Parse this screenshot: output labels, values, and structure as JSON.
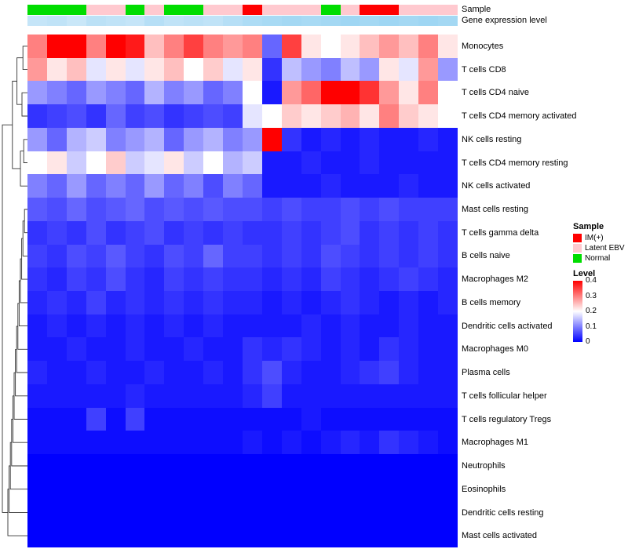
{
  "annotations": {
    "sample_label": "Sample",
    "expression_label": "Gene expression level",
    "sample_colors": {
      "IM(+)": "#FF0000",
      "Latent EBV": "#FFC9CF",
      "Normal": "#00DD00"
    },
    "sample_by_column": [
      "Normal",
      "Normal",
      "Normal",
      "Latent EBV",
      "Latent EBV",
      "Normal",
      "Latent EBV",
      "Normal",
      "Normal",
      "Latent EBV",
      "Latent EBV",
      "IM(+)",
      "Latent EBV",
      "Latent EBV",
      "Latent EBV",
      "Normal",
      "Latent EBV",
      "IM(+)",
      "IM(+)",
      "Latent EBV",
      "Latent EBV",
      "Latent EBV"
    ],
    "expression_by_column": [
      0.25,
      0.3,
      0.2,
      0.35,
      0.3,
      0.25,
      0.4,
      0.3,
      0.35,
      0.3,
      0.4,
      0.5,
      0.55,
      0.6,
      0.55,
      0.6,
      0.65,
      0.6,
      0.65,
      0.6,
      0.65,
      0.6
    ],
    "expression_color_low": "#DCEFFB",
    "expression_color_high": "#7EC8EE"
  },
  "chart_data": {
    "type": "heatmap",
    "rows": [
      "Monocytes",
      "T cells CD8",
      "T cells CD4 naive",
      "T cells CD4 memory activated",
      "NK cells resting",
      "T cells CD4 memory resting",
      "NK cells activated",
      "Mast cells resting",
      "T cells gamma delta",
      "B cells naive",
      "Macrophages M2",
      "B cells memory",
      "Dendritic cells activated",
      "Macrophages M0",
      "Plasma cells",
      "T cells follicular helper",
      "T cells regulatory Tregs",
      "Macrophages M1",
      "Neutrophils",
      "Eosinophils",
      "Dendritic cells resting",
      "Mast cells activated"
    ],
    "n_columns": 22,
    "value_range": [
      0,
      0.4
    ],
    "colorscale": {
      "low": "#0000FF",
      "mid": "#FFFFFF",
      "high": "#FF0000",
      "midpoint": 0.2
    },
    "values": [
      [
        0.3,
        0.4,
        0.4,
        0.3,
        0.4,
        0.38,
        0.25,
        0.3,
        0.35,
        0.3,
        0.28,
        0.3,
        0.08,
        0.35,
        0.22,
        0.2,
        0.22,
        0.25,
        0.28,
        0.25,
        0.3,
        0.22
      ],
      [
        0.28,
        0.22,
        0.25,
        0.18,
        0.22,
        0.18,
        0.22,
        0.25,
        0.2,
        0.24,
        0.18,
        0.22,
        0.04,
        0.15,
        0.12,
        0.1,
        0.15,
        0.12,
        0.22,
        0.18,
        0.28,
        0.12
      ],
      [
        0.12,
        0.1,
        0.08,
        0.12,
        0.1,
        0.08,
        0.14,
        0.1,
        0.12,
        0.08,
        0.1,
        0.2,
        0.02,
        0.28,
        0.32,
        0.4,
        0.4,
        0.36,
        0.28,
        0.22,
        0.3,
        0.2
      ],
      [
        0.04,
        0.05,
        0.06,
        0.04,
        0.08,
        0.05,
        0.06,
        0.04,
        0.05,
        0.06,
        0.05,
        0.18,
        0.2,
        0.24,
        0.22,
        0.24,
        0.26,
        0.22,
        0.3,
        0.24,
        0.22,
        0.2
      ],
      [
        0.12,
        0.08,
        0.14,
        0.16,
        0.1,
        0.12,
        0.14,
        0.08,
        0.12,
        0.14,
        0.1,
        0.12,
        0.4,
        0.04,
        0.02,
        0.03,
        0.02,
        0.03,
        0.02,
        0.02,
        0.03,
        0.02
      ],
      [
        0.2,
        0.22,
        0.16,
        0.2,
        0.24,
        0.16,
        0.18,
        0.22,
        0.16,
        0.2,
        0.14,
        0.16,
        0.02,
        0.02,
        0.03,
        0.02,
        0.02,
        0.03,
        0.02,
        0.02,
        0.02,
        0.02
      ],
      [
        0.1,
        0.08,
        0.12,
        0.08,
        0.1,
        0.08,
        0.12,
        0.08,
        0.1,
        0.06,
        0.1,
        0.08,
        0.02,
        0.02,
        0.02,
        0.03,
        0.02,
        0.02,
        0.02,
        0.03,
        0.02,
        0.02
      ],
      [
        0.07,
        0.06,
        0.08,
        0.06,
        0.07,
        0.08,
        0.06,
        0.07,
        0.06,
        0.07,
        0.06,
        0.06,
        0.05,
        0.06,
        0.05,
        0.05,
        0.06,
        0.05,
        0.06,
        0.05,
        0.05,
        0.05
      ],
      [
        0.04,
        0.05,
        0.04,
        0.06,
        0.04,
        0.05,
        0.06,
        0.04,
        0.05,
        0.04,
        0.05,
        0.04,
        0.04,
        0.05,
        0.04,
        0.05,
        0.06,
        0.04,
        0.05,
        0.04,
        0.05,
        0.04
      ],
      [
        0.05,
        0.04,
        0.06,
        0.05,
        0.07,
        0.05,
        0.04,
        0.06,
        0.05,
        0.08,
        0.05,
        0.05,
        0.04,
        0.05,
        0.04,
        0.06,
        0.05,
        0.04,
        0.05,
        0.04,
        0.05,
        0.04
      ],
      [
        0.04,
        0.03,
        0.05,
        0.04,
        0.06,
        0.04,
        0.03,
        0.05,
        0.04,
        0.05,
        0.04,
        0.04,
        0.03,
        0.04,
        0.03,
        0.05,
        0.04,
        0.03,
        0.04,
        0.05,
        0.04,
        0.03
      ],
      [
        0.03,
        0.04,
        0.03,
        0.05,
        0.03,
        0.04,
        0.03,
        0.04,
        0.03,
        0.04,
        0.03,
        0.03,
        0.02,
        0.03,
        0.02,
        0.03,
        0.04,
        0.03,
        0.02,
        0.03,
        0.02,
        0.03
      ],
      [
        0.02,
        0.03,
        0.02,
        0.03,
        0.02,
        0.03,
        0.02,
        0.03,
        0.02,
        0.03,
        0.02,
        0.02,
        0.02,
        0.02,
        0.03,
        0.02,
        0.03,
        0.02,
        0.02,
        0.03,
        0.02,
        0.02
      ],
      [
        0.02,
        0.02,
        0.03,
        0.02,
        0.02,
        0.03,
        0.02,
        0.02,
        0.03,
        0.02,
        0.02,
        0.04,
        0.03,
        0.04,
        0.03,
        0.02,
        0.03,
        0.02,
        0.04,
        0.03,
        0.02,
        0.02
      ],
      [
        0.03,
        0.02,
        0.02,
        0.03,
        0.02,
        0.02,
        0.03,
        0.02,
        0.02,
        0.03,
        0.02,
        0.04,
        0.06,
        0.03,
        0.02,
        0.02,
        0.03,
        0.04,
        0.05,
        0.03,
        0.02,
        0.02
      ],
      [
        0.02,
        0.02,
        0.02,
        0.02,
        0.02,
        0.03,
        0.02,
        0.02,
        0.02,
        0.02,
        0.02,
        0.03,
        0.05,
        0.02,
        0.02,
        0.02,
        0.02,
        0.02,
        0.02,
        0.02,
        0.02,
        0.02
      ],
      [
        0.01,
        0.01,
        0.01,
        0.05,
        0.01,
        0.05,
        0.01,
        0.01,
        0.01,
        0.01,
        0.01,
        0.01,
        0.01,
        0.01,
        0.02,
        0.01,
        0.01,
        0.01,
        0.01,
        0.01,
        0.01,
        0.01
      ],
      [
        0.01,
        0.01,
        0.01,
        0.01,
        0.01,
        0.01,
        0.01,
        0.01,
        0.01,
        0.01,
        0.01,
        0.02,
        0.01,
        0.02,
        0.01,
        0.02,
        0.03,
        0.02,
        0.04,
        0.03,
        0.02,
        0.01
      ],
      [
        0,
        0,
        0,
        0,
        0,
        0,
        0,
        0,
        0,
        0,
        0,
        0,
        0,
        0,
        0,
        0,
        0,
        0,
        0,
        0,
        0,
        0
      ],
      [
        0,
        0,
        0,
        0,
        0,
        0,
        0,
        0,
        0,
        0,
        0,
        0,
        0,
        0,
        0,
        0,
        0,
        0,
        0,
        0,
        0,
        0
      ],
      [
        0,
        0,
        0,
        0,
        0,
        0,
        0,
        0,
        0,
        0,
        0,
        0,
        0,
        0,
        0,
        0,
        0,
        0,
        0,
        0,
        0,
        0
      ],
      [
        0,
        0,
        0,
        0,
        0,
        0,
        0,
        0,
        0,
        0,
        0,
        0,
        0,
        0,
        0,
        0,
        0,
        0,
        0,
        0,
        0,
        0
      ]
    ],
    "row_dendrogram_merges": [
      [
        "L0",
        "L1",
        0.18
      ],
      [
        "L2",
        "L3",
        0.22
      ],
      [
        "M0",
        "M1",
        0.42
      ],
      [
        "L4",
        "L5",
        0.15
      ],
      [
        "M3",
        "L6",
        0.28
      ],
      [
        "M2",
        "M4",
        0.6
      ],
      [
        "L7",
        "L8",
        0.12
      ],
      [
        "M6",
        "L9",
        0.18
      ],
      [
        "M7",
        "L10",
        0.23
      ],
      [
        "M8",
        "L11",
        0.28
      ],
      [
        "M9",
        "L12",
        0.33
      ],
      [
        "M10",
        "L13",
        0.38
      ],
      [
        "M11",
        "L14",
        0.43
      ],
      [
        "M12",
        "L15",
        0.48
      ],
      [
        "M13",
        "L16",
        0.53
      ],
      [
        "M14",
        "L17",
        0.58
      ],
      [
        "M15",
        "L18",
        0.63
      ],
      [
        "M16",
        "L19",
        0.68
      ],
      [
        "M17",
        "L20",
        0.73
      ],
      [
        "M18",
        "L21",
        0.78
      ],
      [
        "M5",
        "M19",
        1.0
      ]
    ]
  },
  "legend": {
    "sample_title": "Sample",
    "sample_items": [
      {
        "label": "IM(+)",
        "color": "#FF0000"
      },
      {
        "label": "Latent EBV",
        "color": "#FFC9CF"
      },
      {
        "label": "Normal",
        "color": "#00DD00"
      }
    ],
    "level_title": "Level",
    "level_ticks": [
      "0.4",
      "0.3",
      "0.2",
      "0.1",
      "0"
    ]
  }
}
